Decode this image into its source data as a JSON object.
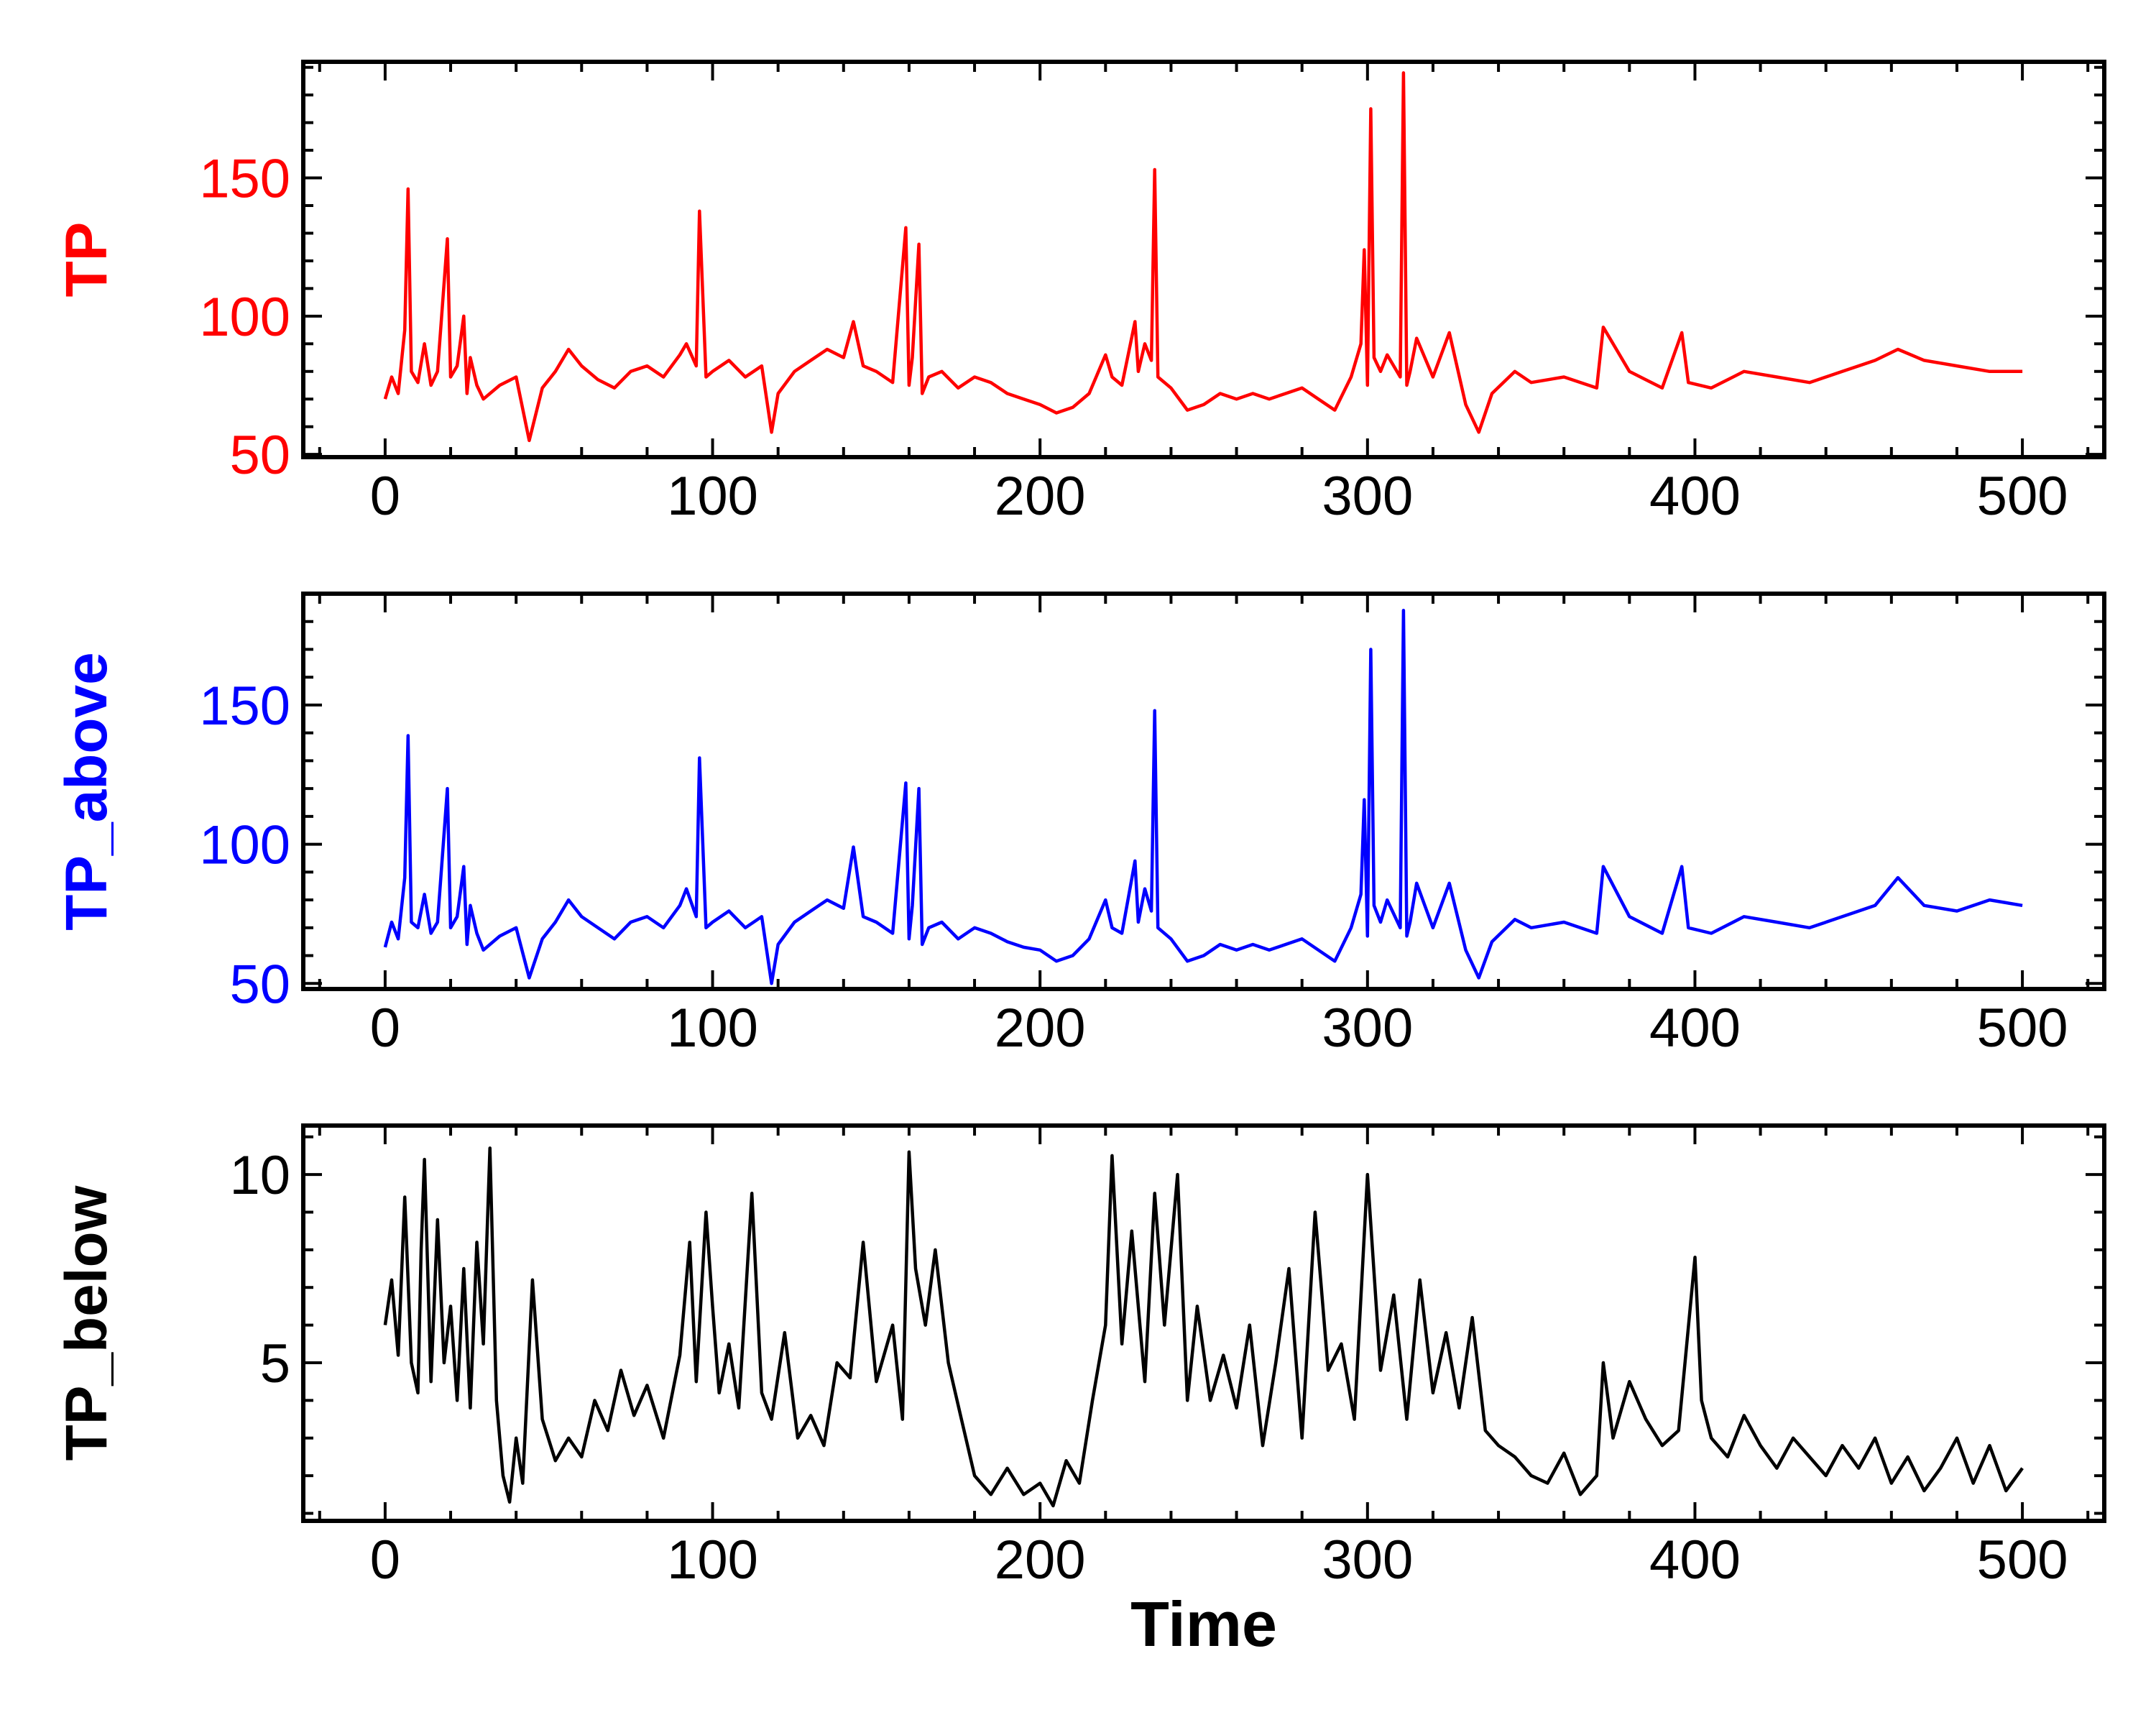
{
  "chart_data": [
    {
      "type": "line",
      "ylabel": "TP",
      "xlabel": "",
      "color": "#ff0000",
      "xlim": [
        -25,
        525
      ],
      "ylim": [
        49,
        192
      ],
      "xticks": [
        0,
        100,
        200,
        300,
        400,
        500
      ],
      "xtick_labels": [
        "0",
        "100",
        "200",
        "300",
        "400",
        "500"
      ],
      "yticks": [
        50,
        100,
        150
      ],
      "ytick_labels": [
        "50",
        "100",
        "150"
      ],
      "x": [
        0,
        2,
        4,
        6,
        7,
        8,
        10,
        12,
        14,
        16,
        17,
        19,
        20,
        22,
        24,
        25,
        26,
        28,
        30,
        35,
        40,
        44,
        48,
        52,
        56,
        60,
        65,
        70,
        75,
        80,
        85,
        90,
        92,
        95,
        96,
        98,
        100,
        105,
        110,
        115,
        118,
        120,
        125,
        130,
        135,
        140,
        143,
        146,
        150,
        155,
        159,
        160,
        161,
        163,
        164,
        166,
        170,
        175,
        180,
        185,
        190,
        195,
        200,
        205,
        210,
        215,
        220,
        222,
        225,
        229,
        230,
        232,
        234,
        235,
        236,
        240,
        245,
        250,
        255,
        260,
        265,
        270,
        275,
        280,
        285,
        290,
        295,
        298,
        299,
        300,
        301,
        302,
        304,
        306,
        310,
        311,
        312,
        313,
        315,
        320,
        325,
        330,
        334,
        338,
        345,
        350,
        360,
        370,
        372,
        380,
        390,
        396,
        398,
        405,
        415,
        425,
        435,
        445,
        455,
        462,
        470,
        480,
        490,
        500
      ],
      "values": [
        70,
        78,
        72,
        95,
        146,
        80,
        76,
        90,
        75,
        80,
        96,
        128,
        78,
        82,
        100,
        72,
        85,
        75,
        70,
        75,
        78,
        55,
        74,
        80,
        88,
        82,
        77,
        74,
        80,
        82,
        78,
        86,
        90,
        82,
        138,
        78,
        80,
        84,
        78,
        82,
        58,
        72,
        80,
        84,
        88,
        85,
        98,
        82,
        80,
        76,
        132,
        75,
        85,
        126,
        72,
        78,
        80,
        74,
        78,
        76,
        72,
        70,
        68,
        65,
        67,
        72,
        86,
        78,
        75,
        98,
        80,
        90,
        84,
        153,
        78,
        74,
        66,
        68,
        72,
        70,
        72,
        70,
        72,
        74,
        70,
        66,
        78,
        90,
        124,
        75,
        175,
        85,
        80,
        86,
        78,
        188,
        75,
        80,
        92,
        78,
        94,
        68,
        58,
        72,
        80,
        76,
        78,
        74,
        96,
        80,
        74,
        94,
        76,
        74,
        80,
        78,
        76,
        80,
        84,
        88,
        84,
        82,
        80,
        80
      ]
    },
    {
      "type": "line",
      "ylabel": "TP_above",
      "xlabel": "",
      "color": "#0000ff",
      "xlim": [
        -25,
        525
      ],
      "ylim": [
        48,
        190
      ],
      "xticks": [
        0,
        100,
        200,
        300,
        400,
        500
      ],
      "xtick_labels": [
        "0",
        "100",
        "200",
        "300",
        "400",
        "500"
      ],
      "yticks": [
        50,
        100,
        150
      ],
      "ytick_labels": [
        "50",
        "100",
        "150"
      ],
      "x": [
        0,
        2,
        4,
        6,
        7,
        8,
        10,
        12,
        14,
        16,
        17,
        19,
        20,
        22,
        24,
        25,
        26,
        28,
        30,
        35,
        40,
        44,
        48,
        52,
        56,
        60,
        65,
        70,
        75,
        80,
        85,
        90,
        92,
        95,
        96,
        98,
        100,
        105,
        110,
        115,
        118,
        120,
        125,
        130,
        135,
        140,
        143,
        146,
        150,
        155,
        159,
        160,
        161,
        163,
        164,
        166,
        170,
        175,
        180,
        185,
        190,
        195,
        200,
        205,
        210,
        215,
        220,
        222,
        225,
        229,
        230,
        232,
        234,
        235,
        236,
        240,
        245,
        250,
        255,
        260,
        265,
        270,
        275,
        280,
        285,
        290,
        295,
        298,
        299,
        300,
        301,
        302,
        304,
        306,
        310,
        311,
        312,
        313,
        315,
        320,
        325,
        330,
        334,
        338,
        345,
        350,
        360,
        370,
        372,
        380,
        390,
        396,
        398,
        405,
        415,
        425,
        435,
        445,
        455,
        462,
        470,
        480,
        490,
        500
      ],
      "values": [
        63,
        72,
        66,
        88,
        139,
        72,
        70,
        82,
        68,
        72,
        88,
        120,
        70,
        74,
        92,
        64,
        78,
        68,
        62,
        67,
        70,
        52,
        66,
        72,
        80,
        74,
        70,
        66,
        72,
        74,
        70,
        78,
        84,
        74,
        131,
        70,
        72,
        76,
        70,
        74,
        50,
        64,
        72,
        76,
        80,
        77,
        99,
        74,
        72,
        68,
        122,
        66,
        78,
        120,
        64,
        70,
        72,
        66,
        70,
        68,
        65,
        63,
        62,
        58,
        60,
        66,
        80,
        70,
        68,
        94,
        72,
        84,
        76,
        148,
        70,
        66,
        58,
        60,
        64,
        62,
        64,
        62,
        64,
        66,
        62,
        58,
        70,
        82,
        116,
        67,
        170,
        78,
        72,
        80,
        70,
        184,
        67,
        72,
        86,
        70,
        86,
        62,
        52,
        65,
        73,
        70,
        72,
        68,
        92,
        74,
        68,
        92,
        70,
        68,
        74,
        72,
        70,
        74,
        78,
        88,
        78,
        76,
        80,
        78
      ]
    },
    {
      "type": "line",
      "ylabel": "TP_below",
      "xlabel": "Time",
      "color": "#000000",
      "xlim": [
        -25,
        525
      ],
      "ylim": [
        0.8,
        11.3
      ],
      "xticks": [
        0,
        100,
        200,
        300,
        400,
        500
      ],
      "xtick_labels": [
        "0",
        "100",
        "200",
        "300",
        "400",
        "500"
      ],
      "yticks": [
        5,
        10
      ],
      "ytick_labels": [
        "5",
        "10"
      ],
      "x": [
        0,
        2,
        4,
        6,
        8,
        10,
        11,
        12,
        14,
        16,
        18,
        20,
        22,
        24,
        26,
        28,
        30,
        32,
        34,
        36,
        38,
        40,
        42,
        45,
        48,
        52,
        56,
        60,
        64,
        68,
        72,
        76,
        80,
        85,
        90,
        93,
        95,
        98,
        100,
        102,
        105,
        108,
        112,
        115,
        118,
        122,
        126,
        130,
        134,
        138,
        142,
        146,
        150,
        155,
        158,
        160,
        162,
        165,
        168,
        172,
        176,
        180,
        185,
        190,
        195,
        200,
        204,
        208,
        212,
        216,
        220,
        222,
        225,
        228,
        232,
        235,
        238,
        242,
        245,
        248,
        252,
        256,
        260,
        264,
        268,
        272,
        276,
        280,
        284,
        288,
        292,
        296,
        300,
        304,
        308,
        312,
        316,
        320,
        324,
        328,
        332,
        336,
        340,
        345,
        350,
        355,
        360,
        365,
        370,
        372,
        375,
        380,
        385,
        390,
        395,
        400,
        402,
        405,
        410,
        415,
        420,
        425,
        430,
        435,
        440,
        445,
        450,
        455,
        460,
        465,
        470,
        475,
        480,
        485,
        490,
        495,
        500
      ],
      "values": [
        6.0,
        7.2,
        5.2,
        9.4,
        5.0,
        4.2,
        8.0,
        10.4,
        4.5,
        8.8,
        5.0,
        6.5,
        4.0,
        7.5,
        3.8,
        8.2,
        5.5,
        10.7,
        4.0,
        2.0,
        1.3,
        3.0,
        1.8,
        7.2,
        3.5,
        2.4,
        3.0,
        2.5,
        4.0,
        3.2,
        4.8,
        3.6,
        4.4,
        3.0,
        5.2,
        8.2,
        4.5,
        9.0,
        6.5,
        4.2,
        5.5,
        3.8,
        9.5,
        4.2,
        3.5,
        5.8,
        3.0,
        3.6,
        2.8,
        5.0,
        4.6,
        8.2,
        4.5,
        6.0,
        3.5,
        10.6,
        7.5,
        6.0,
        8.0,
        5.0,
        3.5,
        2.0,
        1.5,
        2.2,
        1.5,
        1.8,
        1.2,
        2.4,
        1.8,
        4.0,
        6.0,
        10.5,
        5.5,
        8.5,
        4.5,
        9.5,
        6.0,
        10.0,
        4.0,
        6.5,
        4.0,
        5.2,
        3.8,
        6.0,
        2.8,
        5.0,
        7.5,
        3.0,
        9.0,
        4.8,
        5.5,
        3.5,
        10.0,
        4.8,
        6.8,
        3.5,
        7.2,
        4.2,
        5.8,
        3.8,
        6.2,
        3.2,
        2.8,
        2.5,
        2.0,
        1.8,
        2.6,
        1.5,
        2.0,
        5.0,
        3.0,
        4.5,
        3.5,
        2.8,
        3.2,
        7.8,
        4.0,
        3.0,
        2.5,
        3.6,
        2.8,
        2.2,
        3.0,
        2.5,
        2.0,
        2.8,
        2.2,
        3.0,
        1.8,
        2.5,
        1.6,
        2.2,
        3.0,
        1.8,
        2.8,
        1.6,
        2.2
      ]
    }
  ]
}
